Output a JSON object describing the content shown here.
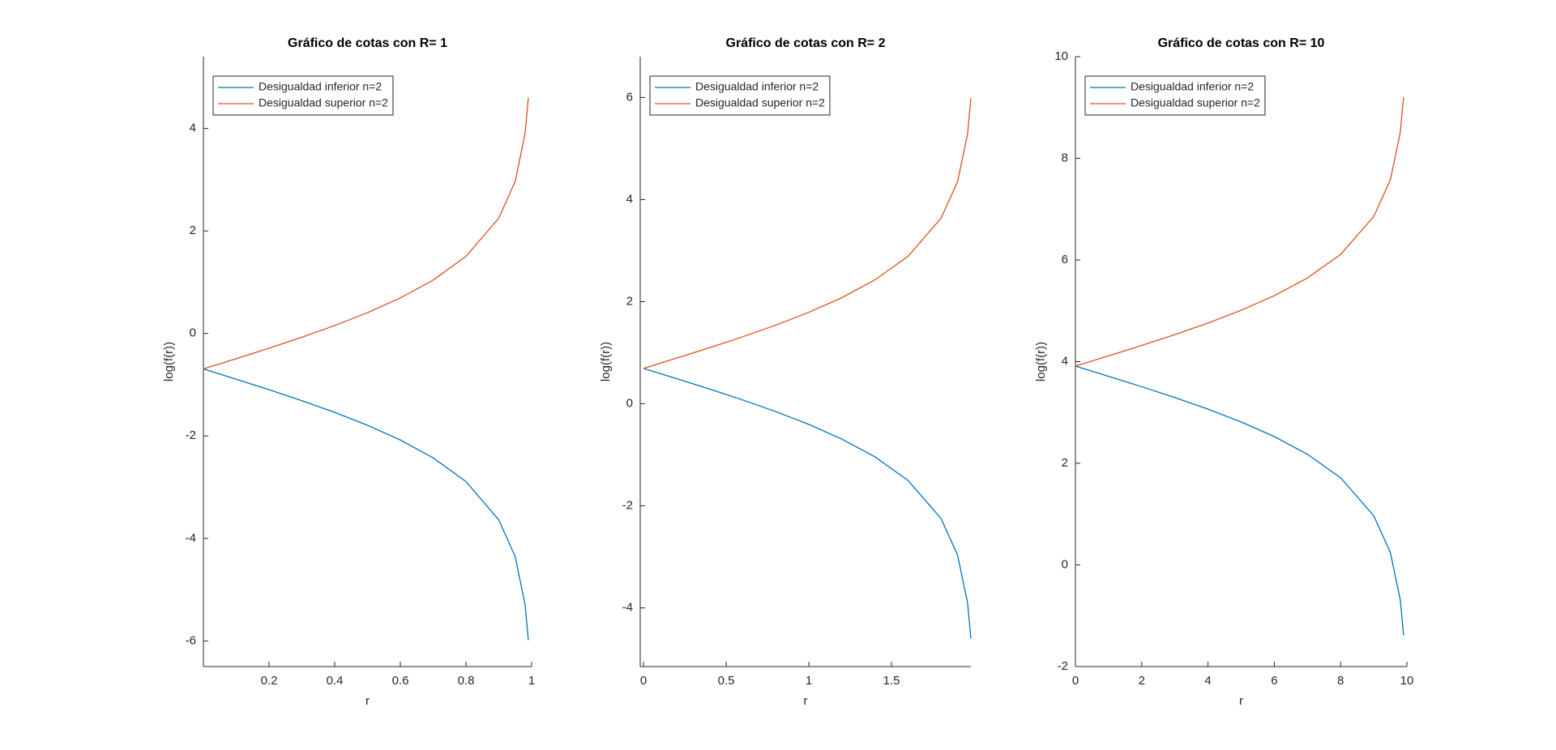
{
  "chart_data": [
    {
      "type": "line",
      "title": "Gráfico de cotas con R= 1",
      "x_label": "r",
      "y_label": "log(f(r))",
      "x": [
        0,
        0.1,
        0.2,
        0.3,
        0.4,
        0.5,
        0.6,
        0.7,
        0.8,
        0.9,
        0.95,
        0.98,
        0.99
      ],
      "series": [
        {
          "name": "Desigualdad inferior n=2",
          "color": "#0072bd",
          "values": [
            -0.693,
            -0.894,
            -1.098,
            -1.312,
            -1.54,
            -1.792,
            -2.079,
            -2.428,
            -2.89,
            -3.638,
            -4.357,
            -5.288,
            -5.986
          ]
        },
        {
          "name": "Desigualdad superior n=2",
          "color": "#d95319",
          "values": [
            -0.693,
            -0.493,
            -0.288,
            -0.074,
            0.154,
            0.405,
            0.693,
            1.041,
            1.504,
            2.251,
            2.97,
            3.902,
            4.6
          ]
        }
      ],
      "xlim": [
        0,
        1
      ],
      "xticks": [
        0.2,
        0.4,
        0.6,
        0.8,
        1
      ],
      "ylim": [
        -6.5,
        5.4
      ],
      "yticks": [
        -6,
        -4,
        -2,
        0,
        2,
        4
      ],
      "legend": "upper-left"
    },
    {
      "type": "line",
      "title": "Gráfico de cotas con R= 2",
      "x_label": "r",
      "y_label": "log(f(r))",
      "x": [
        0,
        0.2,
        0.4,
        0.6,
        0.8,
        1.0,
        1.2,
        1.4,
        1.6,
        1.8,
        1.9,
        1.96,
        1.98
      ],
      "series": [
        {
          "name": "Desigualdad inferior n=2",
          "color": "#0072bd",
          "values": [
            0.693,
            0.492,
            0.288,
            0.074,
            -0.154,
            -0.405,
            -0.693,
            -1.041,
            -1.504,
            -2.251,
            -2.97,
            -3.902,
            -4.6
          ]
        },
        {
          "name": "Desigualdad superior n=2",
          "color": "#d95319",
          "values": [
            0.693,
            0.894,
            1.098,
            1.312,
            1.54,
            1.792,
            2.079,
            2.428,
            2.89,
            3.638,
            4.357,
            5.288,
            5.986
          ]
        }
      ],
      "xlim": [
        -0.02,
        1.98
      ],
      "xticks": [
        0,
        0.5,
        1,
        1.5
      ],
      "ylim": [
        -5.15,
        6.8
      ],
      "yticks": [
        -4,
        -2,
        0,
        2,
        4,
        6
      ],
      "legend": "upper-left"
    },
    {
      "type": "line",
      "title": "Gráfico de cotas con R= 10",
      "x_label": "r",
      "y_label": "log(f(r))",
      "x": [
        0,
        1,
        2,
        3,
        4,
        5,
        6,
        7,
        8,
        9,
        9.5,
        9.8,
        9.9
      ],
      "series": [
        {
          "name": "Desigualdad inferior n=2",
          "color": "#0072bd",
          "values": [
            3.912,
            3.711,
            3.507,
            3.293,
            3.065,
            2.813,
            2.526,
            2.177,
            1.715,
            0.968,
            0.248,
            -0.683,
            -1.381
          ]
        },
        {
          "name": "Desigualdad superior n=2",
          "color": "#d95319",
          "values": [
            3.912,
            4.113,
            4.318,
            4.531,
            4.759,
            5.011,
            5.298,
            5.647,
            6.109,
            6.856,
            7.576,
            8.507,
            9.205
          ]
        }
      ],
      "xlim": [
        0,
        10
      ],
      "xticks": [
        0,
        2,
        4,
        6,
        8,
        10
      ],
      "ylim": [
        -2,
        10
      ],
      "yticks": [
        -2,
        0,
        2,
        4,
        6,
        8,
        10
      ],
      "legend": "upper-left"
    }
  ]
}
